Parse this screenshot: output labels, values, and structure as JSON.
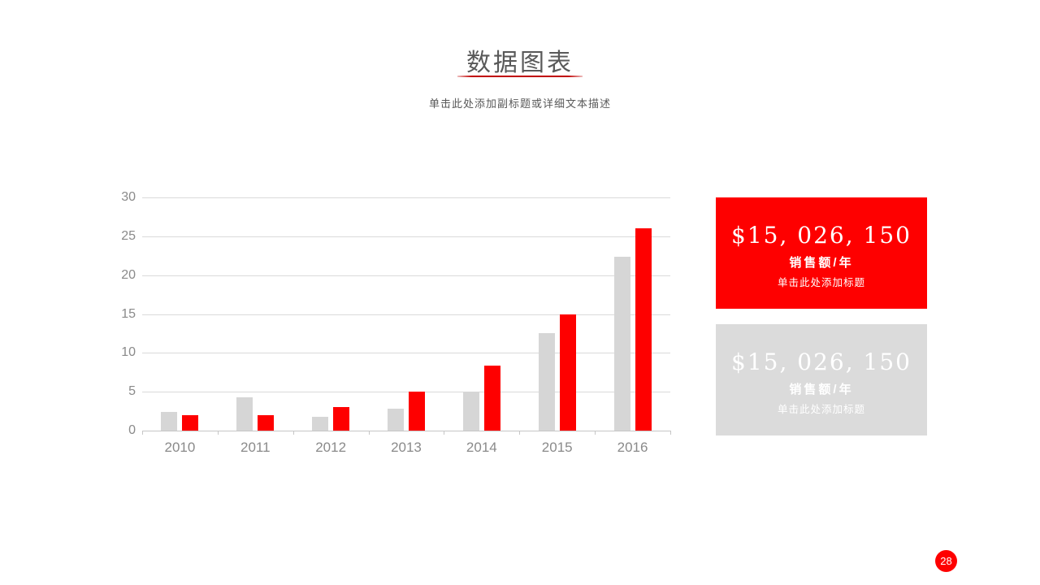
{
  "slide": {
    "title": "数据图表",
    "subtitle": "单击此处添加副标题或详细文本描述",
    "page_number": "28"
  },
  "cards": [
    {
      "amount": "$15, 026, 150",
      "unit": "销售额/年",
      "caption": "单击此处添加标题",
      "bg_color": "#FE0000",
      "text_color": "#FFFFFF"
    },
    {
      "amount": "$15, 026, 150",
      "unit": "销售额/年",
      "caption": "单击此处添加标题",
      "bg_color": "#DBDBDB",
      "text_color": "#FFFFFF"
    }
  ],
  "chart_data": {
    "type": "bar",
    "categories": [
      "2010",
      "2011",
      "2012",
      "2013",
      "2014",
      "2015",
      "2016"
    ],
    "series": [
      {
        "name": "series-gray",
        "color": "#D6D6D6",
        "values": [
          2.4,
          4.3,
          1.8,
          2.8,
          5,
          12.5,
          22.4
        ]
      },
      {
        "name": "series-red",
        "color": "#FE0000",
        "values": [
          2,
          2,
          3,
          5,
          8.4,
          15,
          26
        ]
      }
    ],
    "title": "",
    "xlabel": "",
    "ylabel": "",
    "ylim": [
      0,
      30
    ],
    "yticks": [
      0,
      5,
      10,
      15,
      20,
      25,
      30
    ],
    "grid": true,
    "legend": false
  },
  "colors": {
    "accent_red": "#FE0000",
    "underline_red": "#C00000",
    "title_gray": "#595959",
    "axis_label_gray": "#8A8A8A",
    "gridline_gray": "#DADADA",
    "bar_gray": "#D6D6D6",
    "card_gray": "#DBDBDB"
  }
}
